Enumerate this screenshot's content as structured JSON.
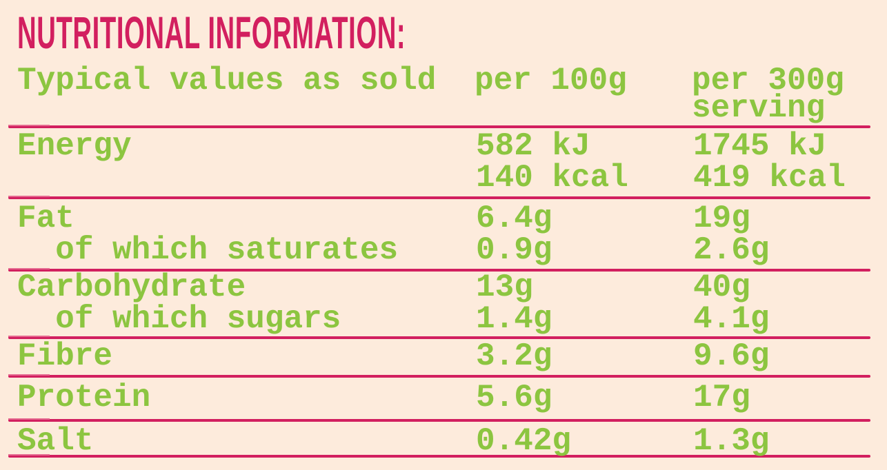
{
  "title": "NUTRITIONAL INFORMATION:",
  "colors": {
    "background": "#fdebdc",
    "accent": "#d21f5f",
    "text": "#8cc540"
  },
  "header": {
    "label": "Typical values as sold",
    "col1": "per 100g",
    "col2_line1": "per 300g",
    "col2_line2": "serving"
  },
  "rows": [
    {
      "label": [
        "Energy"
      ],
      "per100g": [
        "582 kJ",
        "140 kcal"
      ],
      "perServing": [
        "1745 kJ",
        "419 kcal"
      ]
    },
    {
      "label": [
        "Fat",
        "  of which saturates"
      ],
      "per100g": [
        "6.4g",
        "0.9g"
      ],
      "perServing": [
        "19g",
        "2.6g"
      ]
    },
    {
      "label": [
        "Carbohydrate",
        "  of which sugars"
      ],
      "per100g": [
        "13g",
        "1.4g"
      ],
      "perServing": [
        "40g",
        "4.1g"
      ]
    },
    {
      "label": [
        "Fibre"
      ],
      "per100g": [
        "3.2g"
      ],
      "perServing": [
        "9.6g"
      ]
    },
    {
      "label": [
        "Protein"
      ],
      "per100g": [
        "5.6g"
      ],
      "perServing": [
        "17g"
      ]
    },
    {
      "label": [
        "Salt"
      ],
      "per100g": [
        "0.42g"
      ],
      "perServing": [
        "1.3g"
      ]
    }
  ]
}
